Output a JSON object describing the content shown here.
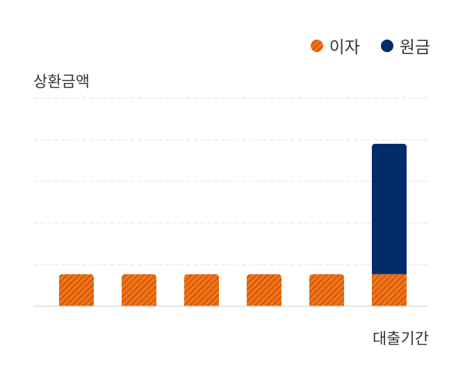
{
  "chart_data": {
    "type": "bar",
    "stacked": true,
    "categories": [
      "",
      "",
      "",
      "",
      "",
      ""
    ],
    "ylabel": "상환금액",
    "xlabel": "대출기간",
    "grid": true,
    "legend_position": "top-right",
    "ylim": [
      0,
      5
    ],
    "series": [
      {
        "name": "이자",
        "color": "#F47216",
        "pattern": "diagonal-hatch",
        "values": [
          0.77,
          0.77,
          0.77,
          0.77,
          0.77,
          0.77
        ]
      },
      {
        "name": "원금",
        "color": "#032C6A",
        "values": [
          0,
          0,
          0,
          0,
          0,
          3.13
        ]
      }
    ]
  }
}
